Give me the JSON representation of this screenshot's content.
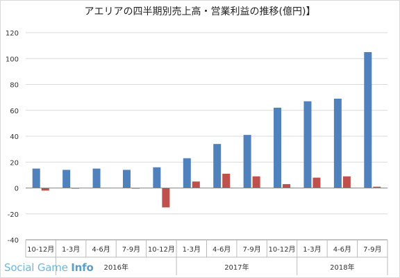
{
  "chart_data": {
    "type": "bar",
    "title": "アエリアの四半期別売上高・営業利益の推移(億円)】",
    "ylim": [
      -40,
      120
    ],
    "ytick_step": 20,
    "grid": "horizontal",
    "categories": [
      "10-12月",
      "1-3月",
      "4-6月",
      "7-9月",
      "10-12月",
      "1-3月",
      "4-6月",
      "7-9月",
      "10-12月",
      "1-3月",
      "4-6月",
      "7-9月"
    ],
    "year_groups": [
      {
        "label": "",
        "start": 0,
        "end": 0
      },
      {
        "label": "2016年",
        "start": 1,
        "end": 4
      },
      {
        "label": "2017年",
        "start": 5,
        "end": 8
      },
      {
        "label": "2018年",
        "start": 9,
        "end": 11
      }
    ],
    "series": [
      {
        "values": [
          15,
          14,
          15,
          14,
          16,
          23,
          34,
          41,
          62,
          67,
          69,
          105
        ],
        "color": "#4f81bd"
      },
      {
        "values": [
          -2,
          -0.5,
          0,
          -0.5,
          -15,
          5,
          11,
          9,
          3,
          8,
          9,
          1
        ],
        "color": "#c0504d"
      }
    ]
  },
  "watermark": {
    "text_light": "Social Game ",
    "text_bold": "Info"
  }
}
